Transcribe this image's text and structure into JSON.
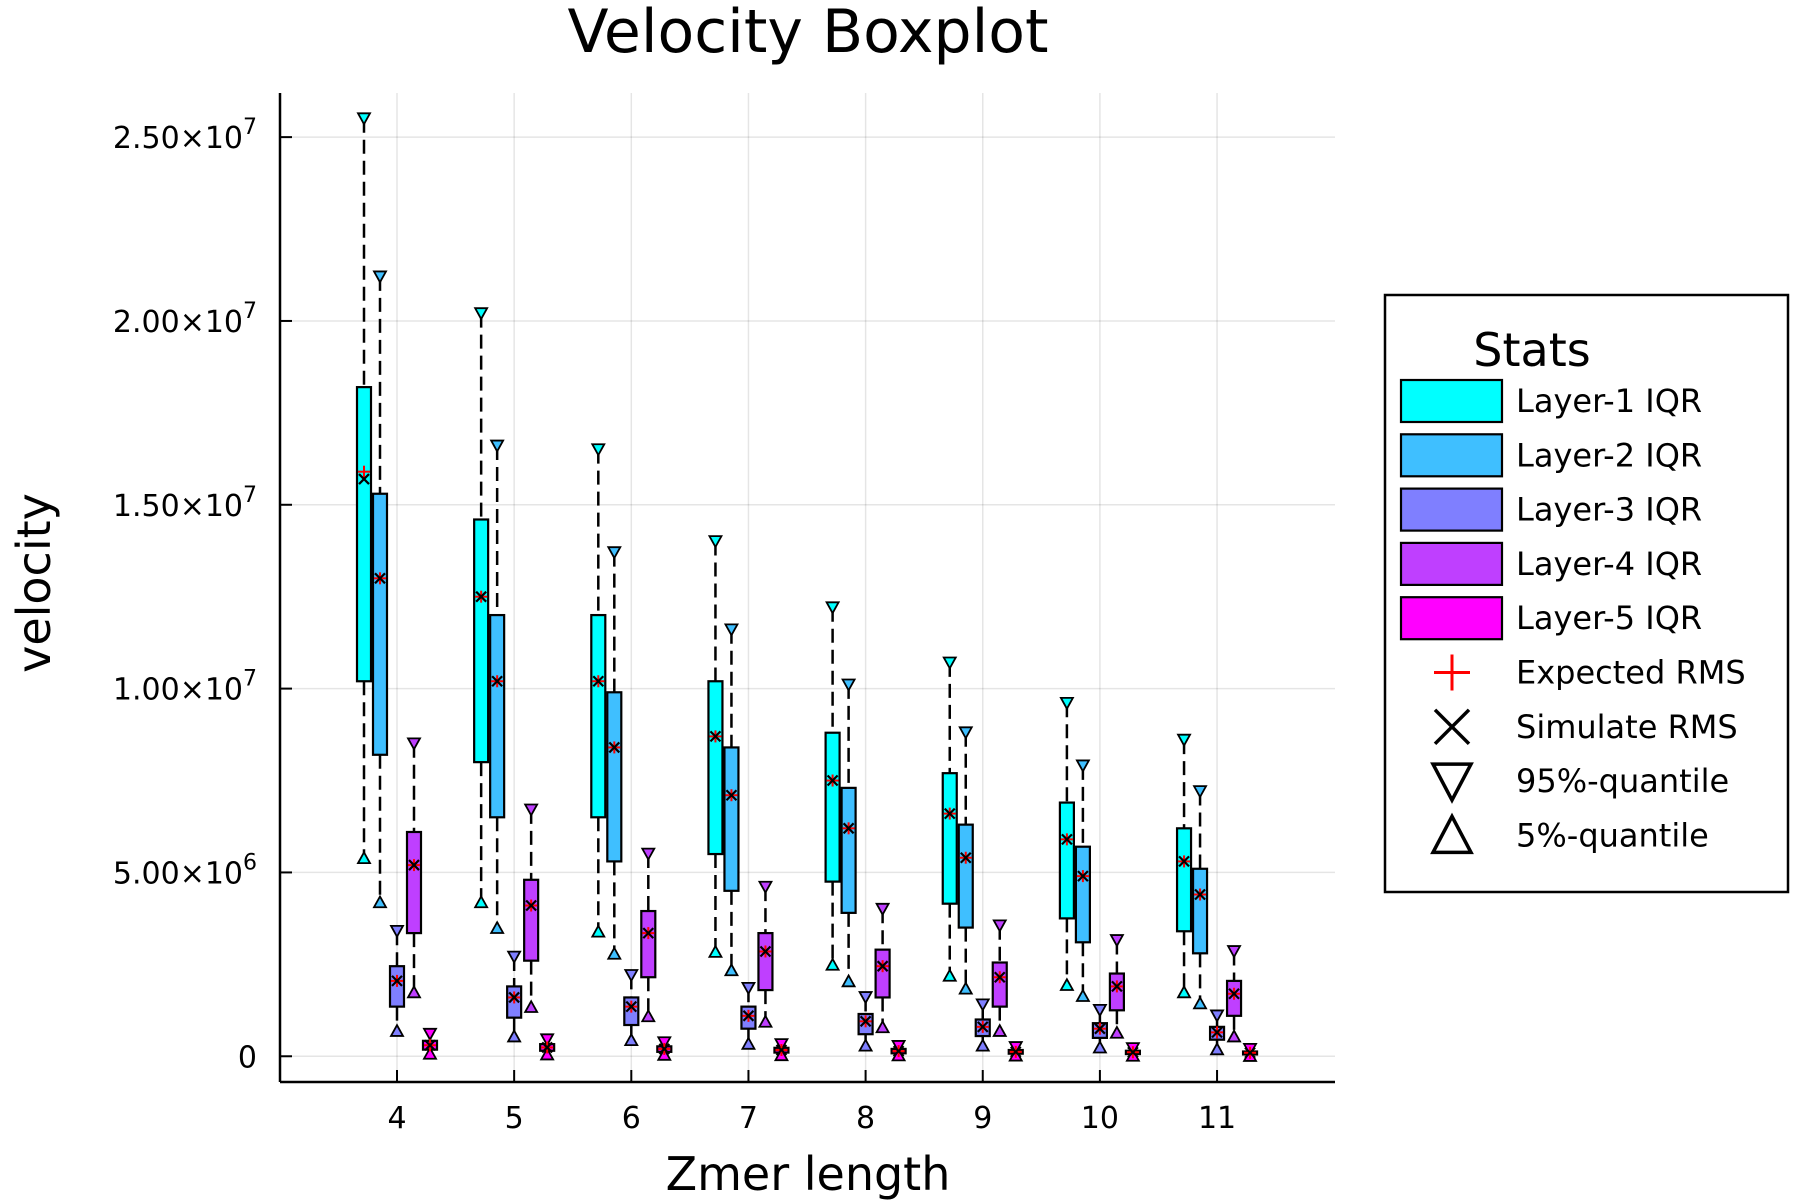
{
  "chart_data": {
    "type": "boxplot",
    "title": "Velocity Boxplot",
    "xlabel": "Zmer length",
    "ylabel": "velocity",
    "categories": [
      "4",
      "5",
      "6",
      "7",
      "8",
      "9",
      "10",
      "11"
    ],
    "ylim": [
      -700000,
      26200000
    ],
    "yticks": [
      {
        "value": 0,
        "mantissa": "0",
        "exp": ""
      },
      {
        "value": 5000000,
        "mantissa": "5.00×10",
        "exp": "6"
      },
      {
        "value": 10000000,
        "mantissa": "1.00×10",
        "exp": "7"
      },
      {
        "value": 15000000,
        "mantissa": "1.50×10",
        "exp": "7"
      },
      {
        "value": 20000000,
        "mantissa": "2.00×10",
        "exp": "7"
      },
      {
        "value": 25000000,
        "mantissa": "2.50×10",
        "exp": "7"
      }
    ],
    "grid": true,
    "legend_position": "right",
    "legend_title": "Stats",
    "series": [
      {
        "name": "Layer-1 IQR",
        "color": "#00ffff",
        "q1": [
          10200000,
          8000000,
          6500000,
          5500000,
          4750000,
          4150000,
          3750000,
          3400000
        ],
        "q3": [
          18200000,
          14600000,
          12000000,
          10200000,
          8800000,
          7700000,
          6900000,
          6200000
        ],
        "rms": [
          15700000,
          12500000,
          10200000,
          8700000,
          7500000,
          6600000,
          5900000,
          5300000
        ],
        "expected": [
          15900000,
          12500000,
          10200000,
          8700000,
          7500000,
          6600000,
          5900000,
          5300000
        ],
        "p95": [
          25500000,
          20200000,
          16500000,
          14000000,
          12200000,
          10700000,
          9600000,
          8600000
        ],
        "p5": [
          5400000,
          4200000,
          3400000,
          2850000,
          2500000,
          2200000,
          1950000,
          1750000
        ]
      },
      {
        "name": "Layer-2 IQR",
        "color": "#3fbfff",
        "q1": [
          8200000,
          6500000,
          5300000,
          4500000,
          3900000,
          3500000,
          3100000,
          2800000
        ],
        "q3": [
          15300000,
          12000000,
          9900000,
          8400000,
          7300000,
          6300000,
          5700000,
          5100000
        ],
        "rms": [
          13000000,
          10200000,
          8400000,
          7100000,
          6200000,
          5400000,
          4900000,
          4400000
        ],
        "expected": [
          13000000,
          10200000,
          8400000,
          7100000,
          6200000,
          5400000,
          4900000,
          4400000
        ],
        "p95": [
          21200000,
          16600000,
          13700000,
          11600000,
          10100000,
          8800000,
          7900000,
          7200000
        ],
        "p5": [
          4200000,
          3500000,
          2800000,
          2350000,
          2050000,
          1850000,
          1650000,
          1450000
        ]
      },
      {
        "name": "Layer-3 IQR",
        "color": "#7f7fff",
        "q1": [
          1350000,
          1050000,
          850000,
          750000,
          600000,
          550000,
          500000,
          450000
        ],
        "q3": [
          2450000,
          1900000,
          1600000,
          1350000,
          1150000,
          1000000,
          900000,
          800000
        ],
        "rms": [
          2050000,
          1600000,
          1350000,
          1100000,
          950000,
          800000,
          750000,
          650000
        ],
        "expected": [
          2050000,
          1600000,
          1350000,
          1100000,
          950000,
          800000,
          750000,
          650000
        ],
        "p95": [
          3400000,
          2700000,
          2200000,
          1850000,
          1600000,
          1400000,
          1250000,
          1100000
        ],
        "p5": [
          700000,
          550000,
          450000,
          350000,
          300000,
          300000,
          250000,
          200000
        ]
      },
      {
        "name": "Layer-4 IQR",
        "color": "#bf3fff",
        "q1": [
          3350000,
          2600000,
          2150000,
          1800000,
          1600000,
          1350000,
          1250000,
          1100000
        ],
        "q3": [
          6100000,
          4800000,
          3950000,
          3350000,
          2900000,
          2550000,
          2250000,
          2050000
        ],
        "rms": [
          5200000,
          4100000,
          3350000,
          2850000,
          2450000,
          2150000,
          1900000,
          1700000
        ],
        "expected": [
          5200000,
          4100000,
          3350000,
          2850000,
          2450000,
          2150000,
          1900000,
          1700000
        ],
        "p95": [
          8500000,
          6700000,
          5500000,
          4600000,
          4000000,
          3550000,
          3150000,
          2850000
        ],
        "p5": [
          1750000,
          1350000,
          1100000,
          950000,
          800000,
          700000,
          650000,
          550000
        ]
      },
      {
        "name": "Layer-5 IQR",
        "color": "#ff00ff",
        "q1": [
          180000,
          150000,
          120000,
          100000,
          80000,
          70000,
          60000,
          50000
        ],
        "q3": [
          420000,
          330000,
          270000,
          230000,
          200000,
          170000,
          150000,
          130000
        ],
        "rms": [
          300000,
          240000,
          200000,
          170000,
          140000,
          120000,
          110000,
          95000
        ],
        "expected": [
          300000,
          240000,
          200000,
          170000,
          140000,
          120000,
          110000,
          95000
        ],
        "p95": [
          600000,
          450000,
          370000,
          320000,
          270000,
          240000,
          210000,
          190000
        ],
        "p5": [
          80000,
          60000,
          50000,
          40000,
          35000,
          30000,
          25000,
          20000
        ]
      }
    ],
    "legend_markers": [
      {
        "name": "Expected RMS",
        "marker": "plus",
        "color": "#ff0000"
      },
      {
        "name": "Simulate RMS",
        "marker": "x",
        "color": "#000000"
      },
      {
        "name": "95%-quantile",
        "marker": "triangle-down",
        "color": "#ffffff"
      },
      {
        "name": "5%-quantile",
        "marker": "triangle-up",
        "color": "#ffffff"
      }
    ]
  }
}
